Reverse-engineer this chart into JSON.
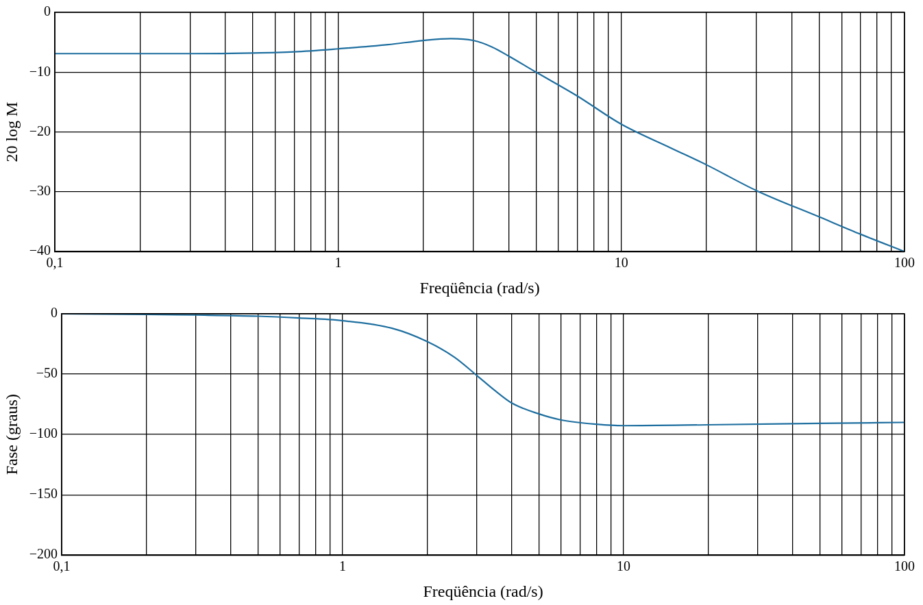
{
  "chart_data": [
    {
      "type": "line",
      "xlabel": "Freqüência (rad/s)",
      "ylabel": "20 log M",
      "log": "x",
      "grid": true,
      "legend": false,
      "marker": "none",
      "line_style": "solid",
      "color": "#1f6fa0",
      "x": [
        0.1,
        0.2,
        0.3,
        0.5,
        0.7,
        1,
        1.5,
        2,
        2.5,
        3,
        3.5,
        4,
        5,
        7,
        10,
        15,
        20,
        30,
        50,
        70,
        100
      ],
      "values": [
        -6.9,
        -6.9,
        -6.9,
        -6.8,
        -6.6,
        -6.1,
        -5.4,
        -4.7,
        -4.4,
        -4.7,
        -5.8,
        -7.3,
        -10,
        -14,
        -18.7,
        -22.7,
        -25.5,
        -29.8,
        -34.2,
        -37.1,
        -40
      ],
      "xlim": [
        0.1,
        100
      ],
      "ylim": [
        -40,
        0
      ],
      "yticks": [
        {
          "value": -40,
          "label": "−40"
        },
        {
          "value": -30,
          "label": "−30"
        },
        {
          "value": -20,
          "label": "−20"
        },
        {
          "value": -10,
          "label": "−10"
        },
        0
      ],
      "xticks": [
        {
          "value": 0.1,
          "label": "0,1"
        },
        {
          "value": 0.2,
          "label": null
        },
        {
          "value": 0.3,
          "label": null
        },
        {
          "value": 0.4,
          "label": null
        },
        {
          "value": 0.5,
          "label": null
        },
        {
          "value": 0.6,
          "label": null
        },
        {
          "value": 0.7,
          "label": null
        },
        {
          "value": 0.8,
          "label": null
        },
        {
          "value": 0.9,
          "label": null
        },
        1,
        {
          "value": 2,
          "label": null
        },
        {
          "value": 3,
          "label": null
        },
        {
          "value": 4,
          "label": null
        },
        {
          "value": 5,
          "label": null
        },
        {
          "value": 6,
          "label": null
        },
        {
          "value": 7,
          "label": null
        },
        {
          "value": 8,
          "label": null
        },
        {
          "value": 9,
          "label": null
        },
        10,
        {
          "value": 20,
          "label": null
        },
        {
          "value": 30,
          "label": null
        },
        {
          "value": 40,
          "label": null
        },
        {
          "value": 50,
          "label": null
        },
        {
          "value": 60,
          "label": null
        },
        {
          "value": 70,
          "label": null
        },
        {
          "value": 80,
          "label": null
        },
        {
          "value": 90,
          "label": null
        },
        100
      ]
    },
    {
      "type": "line",
      "xlabel": "Freqüência (rad/s)",
      "ylabel": "Fase (graus)",
      "log": "x",
      "grid": true,
      "legend": false,
      "marker": "none",
      "line_style": "solid",
      "color": "#1f6fa0",
      "x": [
        0.1,
        0.2,
        0.3,
        0.5,
        0.7,
        1,
        1.5,
        2,
        2.5,
        3,
        3.5,
        4,
        5,
        6,
        8,
        10,
        20,
        50,
        100
      ],
      "values": [
        0,
        -0.5,
        -1,
        -2,
        -3.5,
        -5.7,
        -12,
        -23,
        -36,
        -51,
        -64,
        -74,
        -83,
        -88,
        -91.5,
        -92.7,
        -92,
        -90.8,
        -90
      ],
      "xlim": [
        0.1,
        100
      ],
      "ylim": [
        -200,
        0
      ],
      "yticks": [
        {
          "value": -200,
          "label": "−200"
        },
        {
          "value": -150,
          "label": "−150"
        },
        {
          "value": -100,
          "label": "−100"
        },
        {
          "value": -50,
          "label": "−50"
        },
        0
      ],
      "xticks": [
        {
          "value": 0.1,
          "label": "0,1"
        },
        {
          "value": 0.2,
          "label": null
        },
        {
          "value": 0.3,
          "label": null
        },
        {
          "value": 0.4,
          "label": null
        },
        {
          "value": 0.5,
          "label": null
        },
        {
          "value": 0.6,
          "label": null
        },
        {
          "value": 0.7,
          "label": null
        },
        {
          "value": 0.8,
          "label": null
        },
        {
          "value": 0.9,
          "label": null
        },
        1,
        {
          "value": 2,
          "label": null
        },
        {
          "value": 3,
          "label": null
        },
        {
          "value": 4,
          "label": null
        },
        {
          "value": 5,
          "label": null
        },
        {
          "value": 6,
          "label": null
        },
        {
          "value": 7,
          "label": null
        },
        {
          "value": 8,
          "label": null
        },
        {
          "value": 9,
          "label": null
        },
        10,
        {
          "value": 20,
          "label": null
        },
        {
          "value": 30,
          "label": null
        },
        {
          "value": 40,
          "label": null
        },
        {
          "value": 50,
          "label": null
        },
        {
          "value": 60,
          "label": null
        },
        {
          "value": 70,
          "label": null
        },
        {
          "value": 80,
          "label": null
        },
        {
          "value": 90,
          "label": null
        },
        100
      ]
    }
  ]
}
